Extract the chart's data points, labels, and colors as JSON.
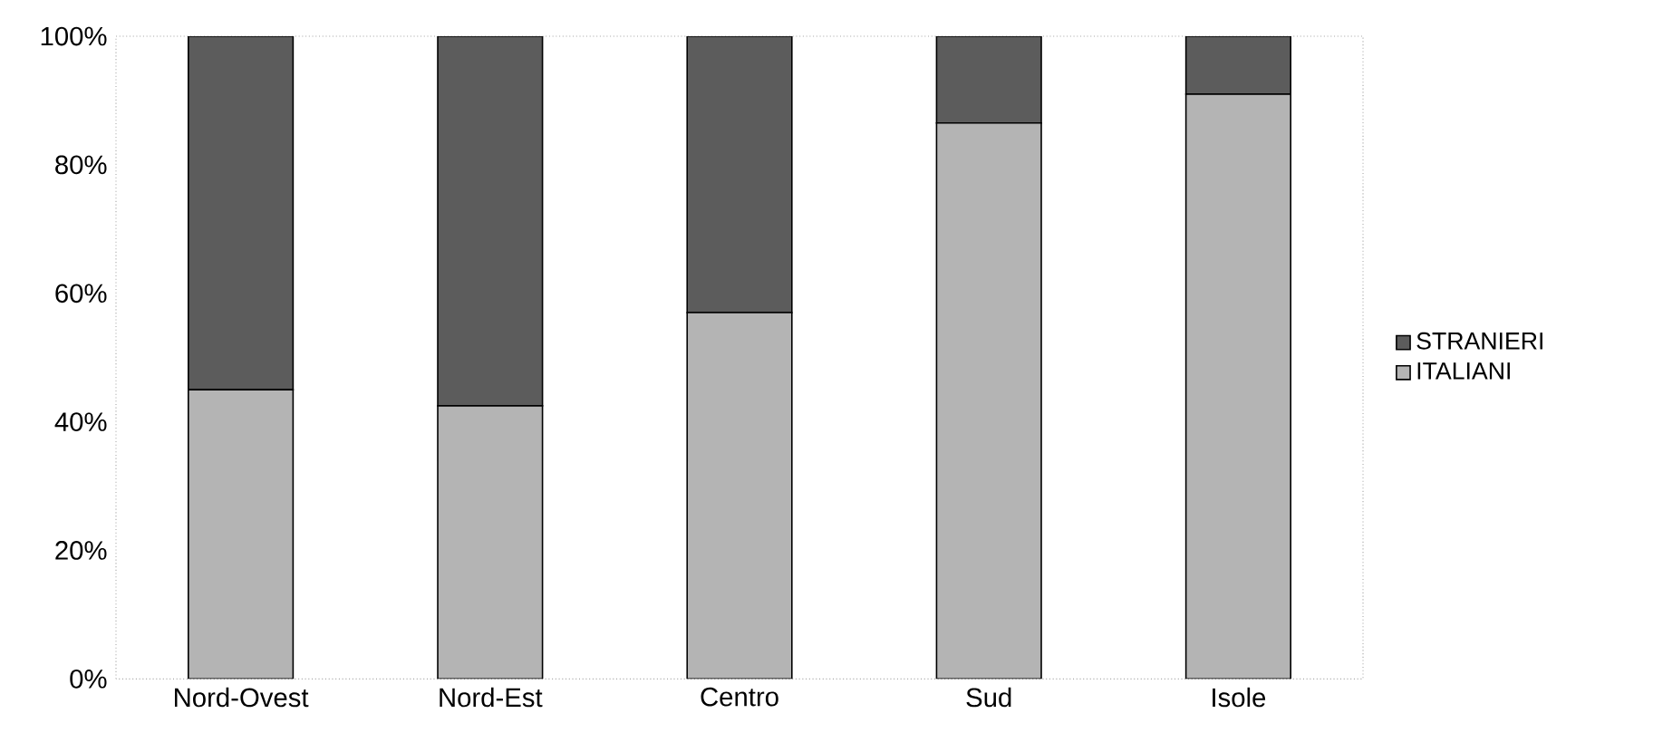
{
  "chart_data": {
    "type": "bar",
    "stacked": true,
    "categories": [
      "Nord-Ovest",
      "Nord-Est",
      "Centro",
      "Sud",
      "Isole"
    ],
    "series": [
      {
        "name": "ITALIANI",
        "color": "#b4b4b4",
        "values": [
          45,
          42.5,
          57,
          86.5,
          91
        ]
      },
      {
        "name": "STRANIERI",
        "color": "#5c5c5c",
        "values": [
          55,
          57.5,
          43,
          13.5,
          9
        ]
      }
    ],
    "ylim": [
      0,
      100
    ],
    "yticks": [
      {
        "value": 0,
        "label": "0%"
      },
      {
        "value": 20,
        "label": "20%"
      },
      {
        "value": 40,
        "label": "40%"
      },
      {
        "value": 60,
        "label": "60%"
      },
      {
        "value": 80,
        "label": "80%"
      },
      {
        "value": 100,
        "label": "100%"
      }
    ],
    "legend": "right",
    "grid": false
  }
}
